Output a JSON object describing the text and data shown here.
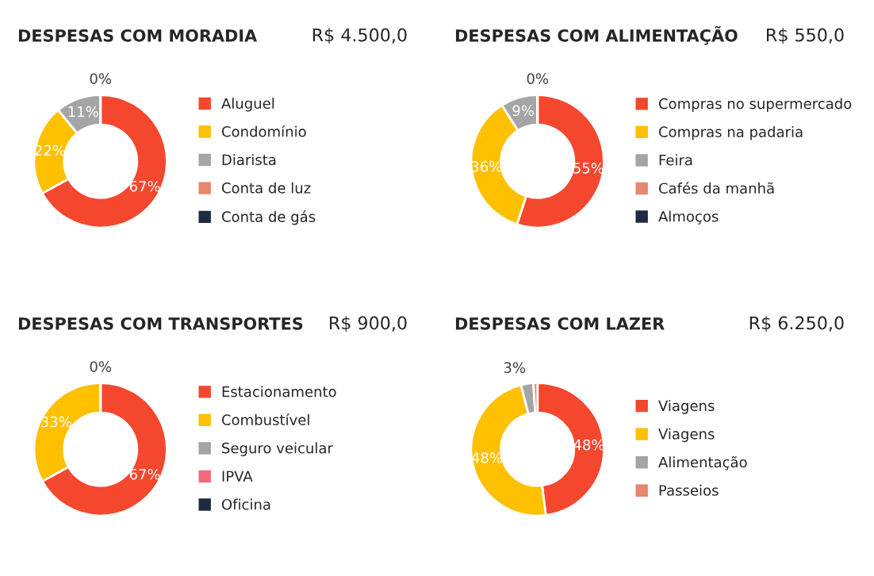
{
  "chart_data": [
    {
      "type": "donut",
      "title": "DESPESAS COM MORADIA",
      "subtitle": "R$ 4.500,0",
      "categories": [
        "Aluguel",
        "Condomínio",
        "Diarista",
        "Conta de luz",
        "Conta de gás"
      ],
      "values": [
        67,
        22,
        11,
        0,
        0
      ],
      "colors": [
        "#f4472e",
        "#ffc000",
        "#a5a5a5",
        "#e8866f",
        "#1f2a44"
      ],
      "value_labels": [
        "67%",
        "22%",
        "11%",
        "0%",
        null
      ],
      "legend": "right"
    },
    {
      "type": "donut",
      "title": "DESPESAS COM ALIMENTAÇÃO",
      "subtitle": "R$ 550,0",
      "categories": [
        "Compras no supermercado",
        "Compras na padaria",
        "Feira",
        "Cafés da manhã",
        "Almoços"
      ],
      "values": [
        55,
        36,
        9,
        0,
        0
      ],
      "colors": [
        "#f4472e",
        "#ffc000",
        "#a5a5a5",
        "#e8866f",
        "#1f2a44"
      ],
      "value_labels": [
        "55%",
        "36%",
        "9%",
        "0%",
        null
      ],
      "legend": "right"
    },
    {
      "type": "donut",
      "title": "DESPESAS COM TRANSPORTES",
      "subtitle": "R$ 900,0",
      "categories": [
        "Estacionamento",
        "Combustível",
        "Seguro veicular",
        "IPVA",
        "Oficina"
      ],
      "values": [
        67,
        33,
        0,
        0,
        0
      ],
      "colors": [
        "#f4472e",
        "#ffc000",
        "#a5a5a5",
        "#f4697a",
        "#1f2a44"
      ],
      "value_labels": [
        "67%",
        "33%",
        "0%",
        null,
        null
      ],
      "legend": "right"
    },
    {
      "type": "donut",
      "title": "DESPESAS COM LAZER",
      "subtitle": "R$ 6.250,0",
      "categories": [
        "Viagens",
        "Viagens",
        "Alimentação",
        "Passeios"
      ],
      "values": [
        48,
        48,
        3,
        1
      ],
      "colors": [
        "#f4472e",
        "#ffc000",
        "#a5a5a5",
        "#e8866f"
      ],
      "value_labels": [
        "48%",
        "48%",
        "3%",
        null
      ],
      "legend": "right"
    }
  ]
}
